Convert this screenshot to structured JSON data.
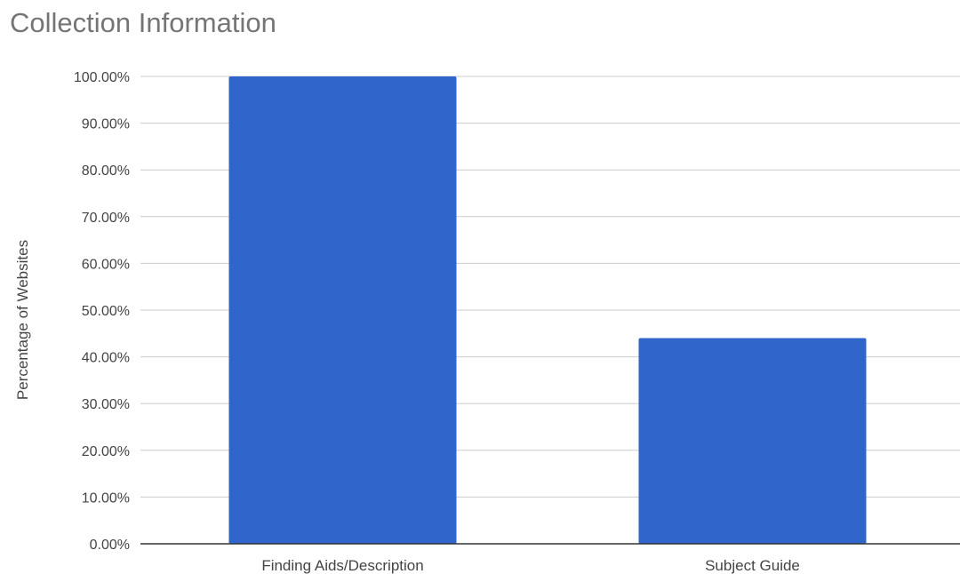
{
  "chart_data": {
    "type": "bar",
    "title": "Collection Information",
    "xlabel": "",
    "ylabel": "Percentage of Websites",
    "categories": [
      "Finding Aids/Description",
      "Subject Guide"
    ],
    "values": [
      100,
      44
    ],
    "ylim": [
      0,
      100
    ],
    "yticks": [
      0,
      10,
      20,
      30,
      40,
      50,
      60,
      70,
      80,
      90,
      100
    ],
    "ytick_labels": [
      "0.00%",
      "10.00%",
      "20.00%",
      "30.00%",
      "40.00%",
      "50.00%",
      "60.00%",
      "70.00%",
      "80.00%",
      "90.00%",
      "100.00%"
    ],
    "grid": true,
    "legend": "none",
    "colors": {
      "bar": "#3066CC",
      "grid": "#CCCCCC",
      "baseline": "#333333",
      "title": "#757575",
      "text": "#444444"
    }
  }
}
